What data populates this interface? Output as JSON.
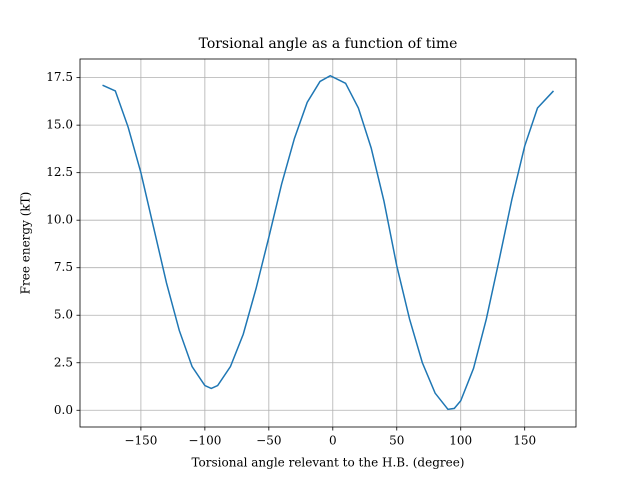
{
  "chart_data": {
    "type": "line",
    "title": "Torsional angle as a function of time",
    "xlabel": "Torsional angle relevant to the H.B. (degree)",
    "ylabel": "Free energy (kT)",
    "x": [
      -180,
      -170,
      -160,
      -150,
      -140,
      -130,
      -120,
      -110,
      -100,
      -95,
      -90,
      -80,
      -70,
      -60,
      -50,
      -40,
      -30,
      -20,
      -10,
      -2,
      10,
      20,
      30,
      40,
      50,
      60,
      70,
      80,
      90,
      95,
      100,
      110,
      120,
      130,
      140,
      150,
      160,
      172.5
    ],
    "series": [
      {
        "color": "#1f77b4",
        "values": [
          17.1,
          16.8,
          14.9,
          12.5,
          9.6,
          6.7,
          4.2,
          2.3,
          1.3,
          1.15,
          1.3,
          2.3,
          4.0,
          6.4,
          9.1,
          11.9,
          14.3,
          16.2,
          17.3,
          17.6,
          17.2,
          15.9,
          13.8,
          11.0,
          7.6,
          4.8,
          2.5,
          0.9,
          0.05,
          0.1,
          0.5,
          2.2,
          4.8,
          7.9,
          11.1,
          13.9,
          15.9,
          16.8
        ]
      }
    ],
    "xlim": [
      -197.6,
      190.1
    ],
    "ylim": [
      -0.88,
      18.48
    ],
    "xticks": [
      {
        "value": -150,
        "label": "−150"
      },
      {
        "value": -100,
        "label": "−100"
      },
      {
        "value": -50,
        "label": "−50"
      },
      0,
      50,
      100,
      150
    ],
    "yticks": [
      {
        "value": 0,
        "label": "0.0"
      },
      2.5,
      {
        "value": 5,
        "label": "5.0"
      },
      7.5,
      {
        "value": 10,
        "label": "10.0"
      },
      12.5,
      {
        "value": 15,
        "label": "15.0"
      },
      17.5
    ],
    "grid": true
  }
}
